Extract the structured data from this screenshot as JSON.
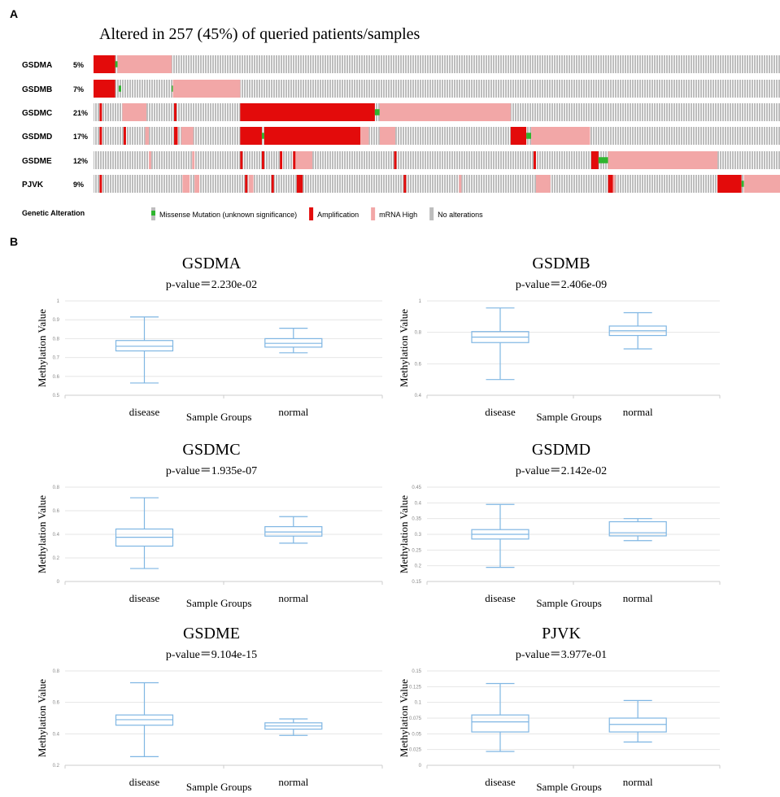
{
  "panel_labels": [
    "A",
    "B"
  ],
  "chart_data": [
    {
      "type": "oncoprint",
      "title": "Altered in 257 (45%) of queried patients/samples",
      "xlim": [
        0,
        571
      ],
      "legend_title": "Genetic Alteration",
      "legend": [
        {
          "name": "Missense Mutation (unknown significance)",
          "color": "#2fb52f"
        },
        {
          "name": "Amplification",
          "color": "#e30b0b"
        },
        {
          "name": "mRNA High",
          "color": "#f2a7a7"
        },
        {
          "name": "No alterations",
          "color": "#bdbdbd"
        }
      ],
      "rows": [
        {
          "name": "GSDMA",
          "value_label": "5%",
          "segments": [
            [
              1,
              0,
              18
            ],
            [
              0,
              18,
              20
            ],
            [
              2,
              20,
              65
            ]
          ]
        },
        {
          "name": "GSDMB",
          "value_label": "7%",
          "segments": [
            [
              1,
              0,
              18
            ],
            [
              0,
              21,
              23
            ],
            [
              0,
              65,
              66
            ],
            [
              2,
              66,
              122
            ]
          ]
        },
        {
          "name": "GSDMC",
          "value_label": "21%",
          "segments": [
            [
              1,
              5,
              7
            ],
            [
              2,
              24,
              44
            ],
            [
              1,
              67,
              69
            ],
            [
              1,
              122,
              234
            ],
            [
              0,
              234,
              238
            ],
            [
              2,
              238,
              347
            ]
          ]
        },
        {
          "name": "GSDMD",
          "value_label": "17%",
          "segments": [
            [
              1,
              5,
              7
            ],
            [
              1,
              25,
              27
            ],
            [
              2,
              43,
              46
            ],
            [
              1,
              67,
              70
            ],
            [
              2,
              73,
              83
            ],
            [
              1,
              122,
              140
            ],
            [
              0,
              140,
              142
            ],
            [
              1,
              142,
              222
            ],
            [
              2,
              222,
              229
            ],
            [
              2,
              238,
              251
            ],
            [
              1,
              347,
              360
            ],
            [
              0,
              360,
              364
            ],
            [
              2,
              364,
              413
            ]
          ]
        },
        {
          "name": "GSDME",
          "value_label": "12%",
          "segments": [
            [
              2,
              46,
              48
            ],
            [
              2,
              82,
              84
            ],
            [
              1,
              122,
              124
            ],
            [
              1,
              140,
              142
            ],
            [
              1,
              155,
              157
            ],
            [
              1,
              166,
              168
            ],
            [
              2,
              168,
              182
            ],
            [
              1,
              250,
              252
            ],
            [
              1,
              366,
              368
            ],
            [
              1,
              414,
              420
            ],
            [
              0,
              420,
              428
            ],
            [
              2,
              428,
              519
            ]
          ]
        },
        {
          "name": "PJVK",
          "value_label": "9%",
          "segments": [
            [
              1,
              5,
              7
            ],
            [
              2,
              74,
              80
            ],
            [
              2,
              84,
              88
            ],
            [
              1,
              126,
              128
            ],
            [
              2,
              129,
              133
            ],
            [
              1,
              148,
              150
            ],
            [
              1,
              169,
              174
            ],
            [
              1,
              258,
              260
            ],
            [
              2,
              304,
              306
            ],
            [
              2,
              368,
              380
            ],
            [
              1,
              428,
              432
            ],
            [
              2,
              432,
              434
            ],
            [
              1,
              519,
              539
            ],
            [
              0,
              539,
              541
            ],
            [
              2,
              541,
              571
            ]
          ]
        }
      ]
    },
    {
      "type": "box",
      "title": "GSDMA",
      "subtitle": "p-value＝2.230e-02",
      "ylabel": "Methylation Value",
      "xlabel": "Sample Groups",
      "categories": [
        "disease",
        "normal"
      ],
      "ylim": [
        0.5,
        1
      ],
      "yticks": [
        0.5,
        0.6,
        0.7,
        0.8,
        0.9,
        1
      ],
      "color": "#7fb6e3",
      "boxes": [
        {
          "min": 0.565,
          "q1": 0.735,
          "median": 0.76,
          "q3": 0.79,
          "max": 0.915
        },
        {
          "min": 0.725,
          "q1": 0.755,
          "median": 0.775,
          "q3": 0.8,
          "max": 0.855
        }
      ]
    },
    {
      "type": "box",
      "title": "GSDMB",
      "subtitle": "p-value＝2.406e-09",
      "ylabel": "Methylation Value",
      "xlabel": "Sample Groups",
      "categories": [
        "disease",
        "normal"
      ],
      "ylim": [
        0.4,
        1
      ],
      "yticks": [
        0.4,
        0.6,
        0.8,
        1
      ],
      "color": "#7fb6e3",
      "boxes": [
        {
          "min": 0.5,
          "q1": 0.735,
          "median": 0.77,
          "q3": 0.805,
          "max": 0.955
        },
        {
          "min": 0.695,
          "q1": 0.78,
          "median": 0.81,
          "q3": 0.84,
          "max": 0.925
        }
      ]
    },
    {
      "type": "box",
      "title": "GSDMC",
      "subtitle": "p-value＝1.935e-07",
      "ylabel": "Methylation Value",
      "xlabel": "Sample Groups",
      "categories": [
        "disease",
        "normal"
      ],
      "ylim": [
        0,
        0.8
      ],
      "yticks": [
        0,
        0.2,
        0.4,
        0.6,
        0.8
      ],
      "color": "#7fb6e3",
      "boxes": [
        {
          "min": 0.11,
          "q1": 0.3,
          "median": 0.375,
          "q3": 0.445,
          "max": 0.71
        },
        {
          "min": 0.325,
          "q1": 0.385,
          "median": 0.42,
          "q3": 0.465,
          "max": 0.55
        }
      ]
    },
    {
      "type": "box",
      "title": "GSDMD",
      "subtitle": "p-value＝2.142e-02",
      "ylabel": "Methylation Value",
      "xlabel": "Sample Groups",
      "categories": [
        "disease",
        "normal"
      ],
      "ylim": [
        0.15,
        0.45
      ],
      "yticks": [
        0.15,
        0.2,
        0.25,
        0.3,
        0.35,
        0.4,
        0.45
      ],
      "color": "#7fb6e3",
      "boxes": [
        {
          "min": 0.195,
          "q1": 0.285,
          "median": 0.3,
          "q3": 0.315,
          "max": 0.395
        },
        {
          "min": 0.28,
          "q1": 0.295,
          "median": 0.305,
          "q3": 0.34,
          "max": 0.35
        }
      ]
    },
    {
      "type": "box",
      "title": "GSDME",
      "subtitle": "p-value＝9.104e-15",
      "ylabel": "Methylation Value",
      "xlabel": "Sample Groups",
      "categories": [
        "disease",
        "normal"
      ],
      "ylim": [
        0.2,
        0.8
      ],
      "yticks": [
        0.2,
        0.4,
        0.6,
        0.8
      ],
      "color": "#7fb6e3",
      "boxes": [
        {
          "min": 0.255,
          "q1": 0.455,
          "median": 0.49,
          "q3": 0.52,
          "max": 0.725
        },
        {
          "min": 0.39,
          "q1": 0.43,
          "median": 0.45,
          "q3": 0.47,
          "max": 0.495
        }
      ]
    },
    {
      "type": "box",
      "title": "PJVK",
      "subtitle": "p-value＝3.977e-01",
      "ylabel": "Methylation Value",
      "xlabel": "Sample Groups",
      "categories": [
        "disease",
        "normal"
      ],
      "ylim": [
        0,
        0.15
      ],
      "yticks": [
        0,
        0.025,
        0.05,
        0.075,
        0.1,
        0.125,
        0.15
      ],
      "color": "#7fb6e3",
      "boxes": [
        {
          "min": 0.022,
          "q1": 0.053,
          "median": 0.069,
          "q3": 0.08,
          "max": 0.13
        },
        {
          "min": 0.037,
          "q1": 0.053,
          "median": 0.065,
          "q3": 0.075,
          "max": 0.103
        }
      ]
    }
  ]
}
